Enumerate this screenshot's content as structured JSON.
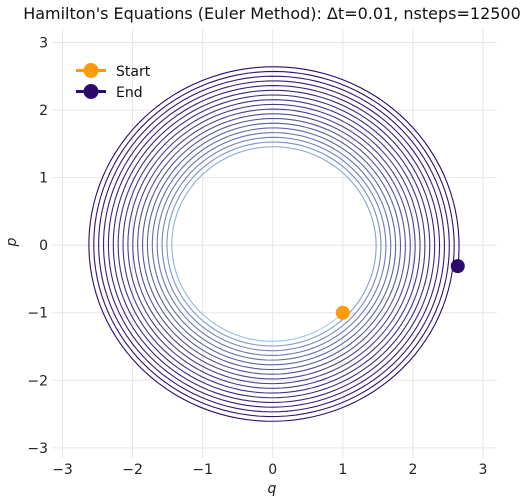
{
  "chart_data": {
    "type": "line",
    "title": "Hamilton's Equations (Euler Method): Δt=0.01, nsteps=12500",
    "xlabel": "q",
    "ylabel": "p",
    "xlim": [
      -3.15,
      3.2
    ],
    "ylim": [
      -3.15,
      3.2
    ],
    "xticks": [
      -3,
      -2,
      -1,
      0,
      1,
      2,
      3
    ],
    "yticks": [
      -3,
      -2,
      -1,
      0,
      1,
      2,
      3
    ],
    "xtick_labels": [
      "−3",
      "−2",
      "−1",
      "0",
      "1",
      "2",
      "3"
    ],
    "ytick_labels": [
      "−3",
      "−2",
      "−1",
      "0",
      "1",
      "2",
      "3"
    ],
    "grid": true,
    "legend_position": "top-left",
    "trajectory": {
      "method": "Euler",
      "dt": 0.01,
      "nsteps": 12500,
      "start": {
        "q": 1.0,
        "p": -1.0
      },
      "end": {
        "q": 2.64,
        "p": -0.31
      },
      "start_radius": 1.414,
      "end_radius": 2.66,
      "color_start": "#a6d4f2",
      "color_end": "#2b0a6b"
    },
    "series": [
      {
        "name": "Start",
        "color": "#ff9a0a",
        "x": [
          1.0
        ],
        "y": [
          -1.0
        ]
      },
      {
        "name": "End",
        "color": "#2b0a6b",
        "x": [
          2.64
        ],
        "y": [
          -0.31
        ]
      }
    ]
  }
}
